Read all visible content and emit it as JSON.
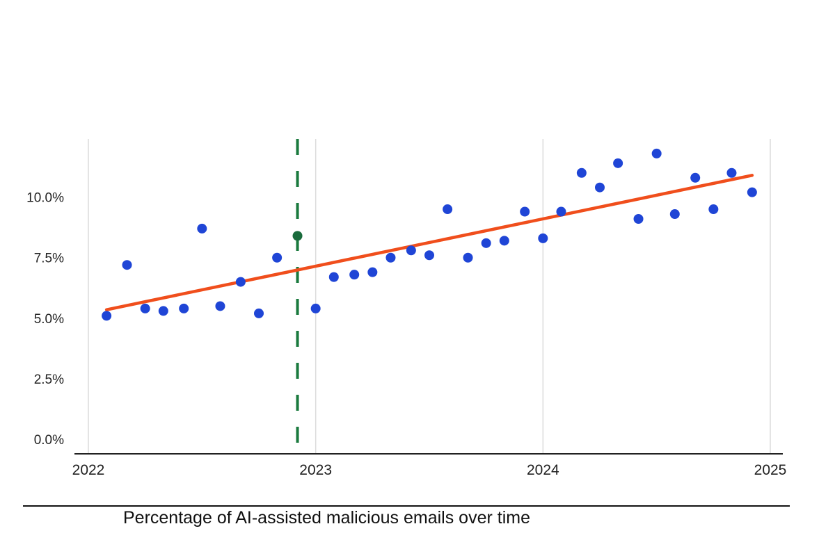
{
  "chart_data": {
    "type": "scatter",
    "title": "",
    "xlabel": "",
    "ylabel": "",
    "caption": "Percentage of AI-assisted malicious emails over time",
    "xlim": [
      2022,
      2025
    ],
    "ylim": [
      -0.6,
      12.4
    ],
    "x_ticks": [
      2022,
      2023,
      2024,
      2025
    ],
    "x_tick_labels": [
      "2022",
      "2023",
      "2024",
      "2025"
    ],
    "y_ticks": [
      0,
      2.5,
      5,
      7.5,
      10
    ],
    "y_tick_labels": [
      "0.0%",
      "2.5%",
      "5.0%",
      "7.5%",
      "10.0%"
    ],
    "grid": "vertical",
    "legend": "none",
    "series": [
      {
        "kind": "scatter",
        "color": "#1f45d6",
        "points": [
          {
            "x": 2022.08,
            "y": 5.1
          },
          {
            "x": 2022.17,
            "y": 7.2
          },
          {
            "x": 2022.25,
            "y": 5.4
          },
          {
            "x": 2022.33,
            "y": 5.3
          },
          {
            "x": 2022.42,
            "y": 5.4
          },
          {
            "x": 2022.5,
            "y": 8.7
          },
          {
            "x": 2022.58,
            "y": 5.5
          },
          {
            "x": 2022.67,
            "y": 6.5
          },
          {
            "x": 2022.75,
            "y": 5.2
          },
          {
            "x": 2022.83,
            "y": 7.5
          },
          {
            "x": 2022.92,
            "y": 8.4,
            "color": "#1a6b3c"
          },
          {
            "x": 2023.0,
            "y": 5.4
          },
          {
            "x": 2023.08,
            "y": 6.7
          },
          {
            "x": 2023.17,
            "y": 6.8
          },
          {
            "x": 2023.25,
            "y": 6.9
          },
          {
            "x": 2023.33,
            "y": 7.5
          },
          {
            "x": 2023.42,
            "y": 7.8
          },
          {
            "x": 2023.5,
            "y": 7.6
          },
          {
            "x": 2023.58,
            "y": 9.5
          },
          {
            "x": 2023.67,
            "y": 7.5
          },
          {
            "x": 2023.75,
            "y": 8.1
          },
          {
            "x": 2023.83,
            "y": 8.2
          },
          {
            "x": 2023.92,
            "y": 9.4
          },
          {
            "x": 2024.0,
            "y": 8.3
          },
          {
            "x": 2024.08,
            "y": 9.4
          },
          {
            "x": 2024.17,
            "y": 11.0
          },
          {
            "x": 2024.25,
            "y": 10.4
          },
          {
            "x": 2024.33,
            "y": 11.4
          },
          {
            "x": 2024.42,
            "y": 9.1
          },
          {
            "x": 2024.5,
            "y": 11.8
          },
          {
            "x": 2024.58,
            "y": 9.3
          },
          {
            "x": 2024.67,
            "y": 10.8
          },
          {
            "x": 2024.75,
            "y": 9.5
          },
          {
            "x": 2024.83,
            "y": 11.0
          },
          {
            "x": 2024.92,
            "y": 10.2
          }
        ]
      },
      {
        "kind": "trend_line",
        "color": "#f04e1c",
        "points": [
          {
            "x": 2022.08,
            "y": 5.35
          },
          {
            "x": 2024.92,
            "y": 10.9
          }
        ]
      }
    ],
    "annotations": [
      {
        "kind": "vertical_dashed_line",
        "x": 2022.92,
        "color": "#1a7a3e"
      }
    ],
    "colors": {
      "points": "#1f45d6",
      "trend": "#f04e1c",
      "marker_line": "#1a7a3e",
      "grid": "#dcdcdc",
      "axis": "#222222"
    }
  }
}
